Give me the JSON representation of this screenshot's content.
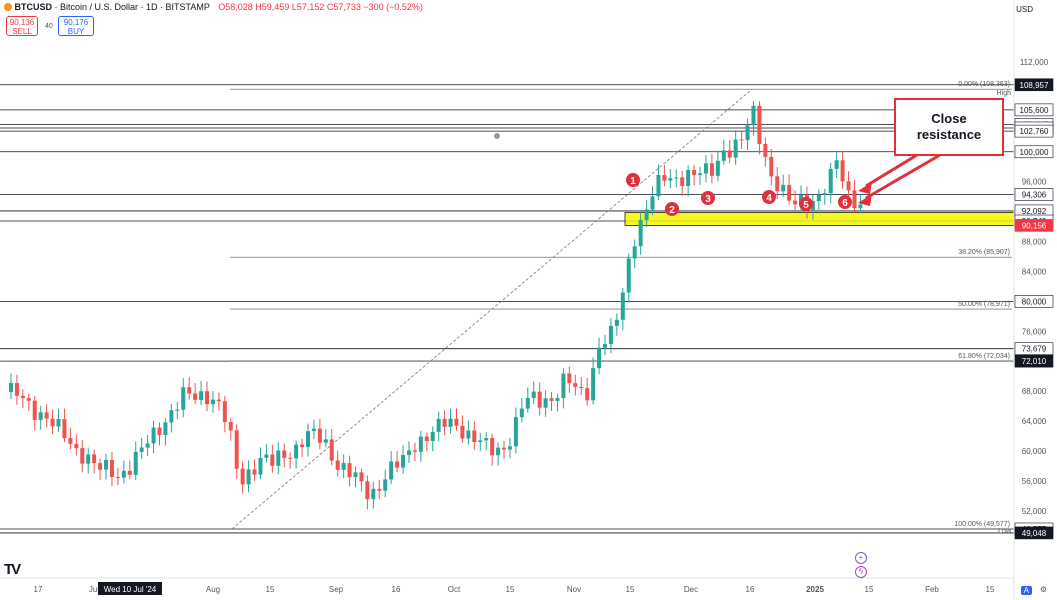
{
  "header": {
    "symbol": "BTCUSD",
    "title": "· Bitcoin / U.S. Dollar · 1D · BITSTAMP",
    "ohlc": "O58,028 H59,459 L57,152 C57,733 −300 (−0.52%)",
    "sell_price": "90,136",
    "sell_label": "SELL",
    "spread": "40",
    "buy_price": "90,176",
    "buy_label": "BUY"
  },
  "currency": "USD",
  "logo": "TV",
  "annotation": {
    "text_line1": "Close",
    "text_line2": "resistance"
  },
  "colors": {
    "up": "#26a69a",
    "down": "#ef5350",
    "zone": "#f5f500",
    "marker": "#e0303a",
    "axis_dark": "#131722",
    "axis_red": "#f23645"
  },
  "chart_data": {
    "type": "candlestick",
    "y_axis_ticks": [
      "112,000",
      "96,000",
      "88,000",
      "84,000",
      "76,000",
      "68,000",
      "64,000",
      "60,000",
      "56,000",
      "52,000"
    ],
    "x_axis_ticks": [
      "17",
      "Jul",
      "Wed 10 Jul '24",
      "Aug",
      "15",
      "Sep",
      "16",
      "Oct",
      "15",
      "Nov",
      "15",
      "Dec",
      "16",
      "2025",
      "15",
      "Feb",
      "15"
    ],
    "price_labels": [
      {
        "value": 108957,
        "text": "108,957",
        "style": "dark"
      },
      {
        "value": 105600,
        "text": "105,600",
        "style": "light"
      },
      {
        "value": 103647,
        "text": "103,647",
        "style": "light"
      },
      {
        "value": 103181,
        "text": "103,181",
        "style": "light"
      },
      {
        "value": 102760,
        "text": "102,760",
        "style": "light"
      },
      {
        "value": 100000,
        "text": "100,000",
        "style": "light"
      },
      {
        "value": 94306,
        "text": "94,306",
        "style": "light"
      },
      {
        "value": 92092,
        "text": "92,092",
        "style": "light"
      },
      {
        "value": 90742,
        "text": "90,742",
        "style": "light"
      },
      {
        "value": 90156,
        "text": "90,156",
        "style": "red"
      },
      {
        "value": 80000,
        "text": "80,000",
        "style": "light"
      },
      {
        "value": 73679,
        "text": "73,679",
        "style": "light"
      },
      {
        "value": 72010,
        "text": "72,010",
        "style": "dark"
      },
      {
        "value": 49577,
        "text": "49,577",
        "style": "light"
      },
      {
        "value": 49048,
        "text": "49,048",
        "style": "dark"
      }
    ],
    "fibonacci": [
      {
        "label": "0.00% (108,363)",
        "value": 108363
      },
      {
        "label": "38.20% (85,907)",
        "value": 85907
      },
      {
        "label": "50.00% (78,971)",
        "value": 78971
      },
      {
        "label": "61.80% (72,034)",
        "value": 72034
      },
      {
        "label": "100.00% (49,577)",
        "value": 49577
      }
    ],
    "high_label": "High",
    "low_label": "Low",
    "support_zone": [
      90156,
      91900
    ],
    "markers": [
      "1",
      "2",
      "3",
      "4",
      "5",
      "6"
    ],
    "ohlc_points": [
      [
        0,
        67900
      ],
      [
        11,
        67000
      ],
      [
        22,
        65800
      ],
      [
        33,
        65000
      ],
      [
        44,
        63500
      ],
      [
        55,
        61900
      ],
      [
        66,
        60300
      ],
      [
        77,
        59500
      ],
      [
        88,
        57600
      ],
      [
        99,
        57400
      ],
      [
        110,
        56800
      ],
      [
        121,
        58000
      ],
      [
        132,
        59800
      ],
      [
        143,
        61800
      ],
      [
        154,
        63800
      ],
      [
        165,
        65600
      ],
      [
        176,
        67400
      ],
      [
        187,
        67200
      ],
      [
        198,
        67700
      ],
      [
        209,
        66700
      ],
      [
        220,
        63300
      ],
      [
        232,
        55800
      ],
      [
        243,
        57600
      ],
      [
        254,
        58900
      ],
      [
        265,
        58300
      ],
      [
        276,
        59600
      ],
      [
        287,
        60200
      ],
      [
        298,
        61800
      ],
      [
        309,
        62100
      ],
      [
        320,
        60800
      ],
      [
        331,
        58300
      ],
      [
        342,
        57100
      ],
      [
        353,
        55600
      ],
      [
        364,
        54100
      ],
      [
        375,
        56000
      ],
      [
        386,
        57600
      ],
      [
        397,
        58600
      ],
      [
        408,
        61100
      ],
      [
        419,
        61900
      ],
      [
        430,
        62600
      ],
      [
        441,
        63900
      ],
      [
        452,
        63700
      ],
      [
        463,
        62100
      ],
      [
        474,
        61000
      ],
      [
        485,
        60300
      ],
      [
        496,
        60300
      ],
      [
        507,
        61900
      ],
      [
        518,
        66100
      ],
      [
        529,
        67200
      ],
      [
        540,
        67000
      ],
      [
        551,
        67100
      ],
      [
        562,
        69600
      ],
      [
        573,
        68100
      ],
      [
        584,
        68300
      ],
      [
        595,
        73800
      ],
      [
        606,
        74800
      ],
      [
        617,
        79900
      ],
      [
        628,
        88000
      ],
      [
        639,
        90600
      ],
      [
        650,
        94300
      ],
      [
        660,
        97200
      ],
      [
        670,
        96700
      ],
      [
        680,
        96300
      ],
      [
        690,
        96400
      ],
      [
        700,
        97600
      ],
      [
        710,
        98200
      ],
      [
        720,
        99900
      ],
      [
        730,
        99600
      ],
      [
        740,
        101700
      ],
      [
        750,
        106400
      ],
      [
        760,
        100700
      ],
      [
        770,
        95500
      ],
      [
        780,
        94400
      ],
      [
        790,
        93700
      ],
      [
        800,
        94000
      ],
      [
        810,
        92600
      ],
      [
        820,
        93800
      ],
      [
        830,
        97200
      ],
      [
        838,
        101300
      ],
      [
        842,
        95400
      ],
      [
        850,
        93700
      ],
      [
        860,
        91700
      ]
    ]
  }
}
